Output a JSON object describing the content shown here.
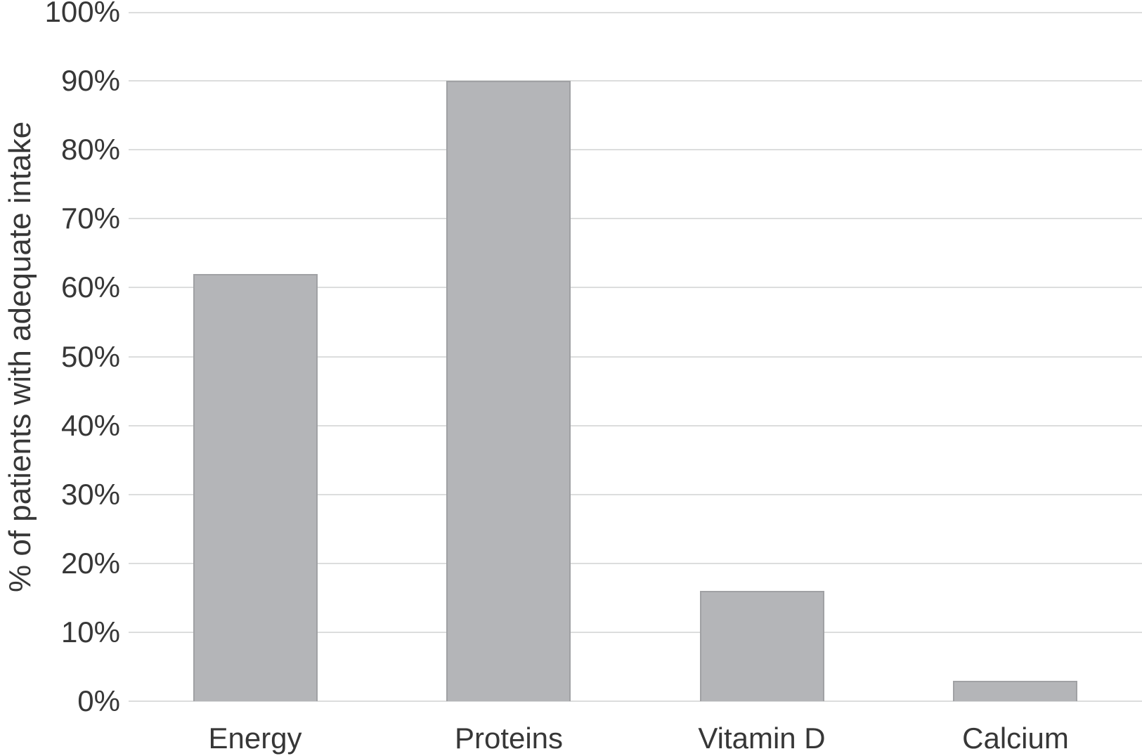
{
  "chart_data": {
    "type": "bar",
    "title": "",
    "categories": [
      "Energy",
      "Proteins",
      "Vitamin D",
      "Calcium"
    ],
    "values": [
      62,
      90,
      16,
      3
    ],
    "xlabel": "",
    "ylabel": "% of patients with adequate intake",
    "ylim": [
      0,
      100
    ],
    "ytick_interval": 10,
    "ytick_labels": [
      "0%",
      "10%",
      "20%",
      "30%",
      "40%",
      "50%",
      "60%",
      "70%",
      "80%",
      "90%",
      "100%"
    ],
    "grid": "horizontal",
    "legend": "none",
    "colors": {
      "bar_fill": "#b4b5b8",
      "bar_border": "#a0a1a4",
      "gridline": "#dcdddd",
      "text": "#373737",
      "background": "#ffffff"
    }
  }
}
